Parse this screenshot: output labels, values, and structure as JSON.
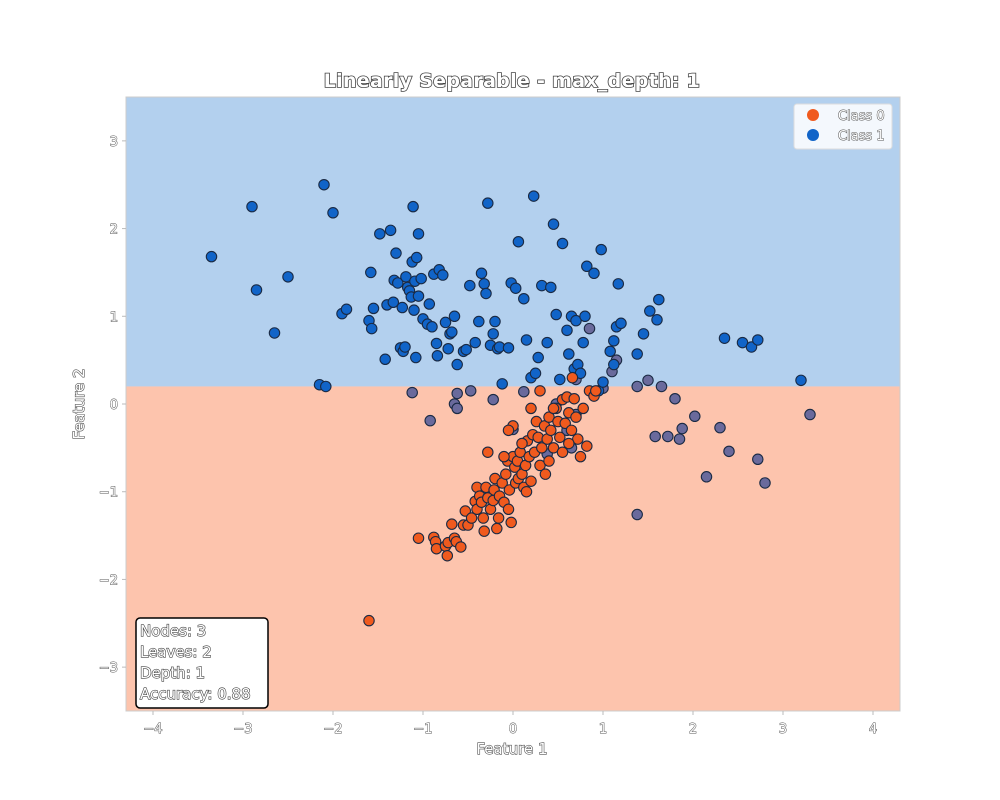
{
  "chart_data": {
    "type": "scatter",
    "title": "Linearly Separable - max_depth: 1",
    "xlabel": "Feature 1",
    "ylabel": "Feature 2",
    "xlim": [
      -4.3,
      4.3
    ],
    "ylim": [
      -3.5,
      3.5
    ],
    "xticks": [
      -4,
      -3,
      -2,
      -1,
      0,
      1,
      2,
      3,
      4
    ],
    "yticks": [
      -3,
      -2,
      -1,
      0,
      1,
      2,
      3
    ],
    "grid": false,
    "legend_position": "top-right",
    "decision_regions": {
      "threshold_feature": "Feature 2",
      "threshold": 0.2,
      "above_class": "Class 1",
      "below_class": "Class 0",
      "above_color": "#b3d0ee",
      "below_color": "#fdc4ad"
    },
    "series": [
      {
        "name": "Class 0",
        "color": "#f05a1e",
        "points": [
          [
            -1.6,
            -2.47
          ],
          [
            -1.05,
            -1.53
          ],
          [
            -0.88,
            -1.52
          ],
          [
            -0.86,
            -1.57
          ],
          [
            -0.85,
            -1.65
          ],
          [
            -0.75,
            -1.62
          ],
          [
            -0.73,
            -1.73
          ],
          [
            -0.72,
            -1.58
          ],
          [
            -0.68,
            -1.37
          ],
          [
            -0.65,
            -1.53
          ],
          [
            -0.63,
            -1.57
          ],
          [
            -0.58,
            -1.63
          ],
          [
            -0.55,
            -1.38
          ],
          [
            -0.53,
            -1.22
          ],
          [
            -0.5,
            -1.38
          ],
          [
            -0.46,
            -1.3
          ],
          [
            -0.42,
            -1.11
          ],
          [
            -0.4,
            -1.2
          ],
          [
            -0.4,
            -0.95
          ],
          [
            -0.37,
            -1.05
          ],
          [
            -0.35,
            -1.12
          ],
          [
            -0.33,
            -1.3
          ],
          [
            -0.32,
            -1.45
          ],
          [
            -0.3,
            -0.95
          ],
          [
            -0.28,
            -1.07
          ],
          [
            -0.25,
            -1.2
          ],
          [
            -0.22,
            -1.1
          ],
          [
            -0.21,
            -0.98
          ],
          [
            -0.2,
            -0.85
          ],
          [
            -0.18,
            -1.42
          ],
          [
            -0.16,
            -1.3
          ],
          [
            -0.15,
            -1.05
          ],
          [
            -0.12,
            -0.9
          ],
          [
            -0.1,
            -1.12
          ],
          [
            -0.08,
            -0.8
          ],
          [
            -0.06,
            -0.65
          ],
          [
            -0.05,
            -1.2
          ],
          [
            -0.04,
            -0.98
          ],
          [
            -0.02,
            -1.35
          ],
          [
            0.0,
            -0.6
          ],
          [
            0.02,
            -0.72
          ],
          [
            0.03,
            -0.9
          ],
          [
            0.05,
            -0.65
          ],
          [
            0.06,
            -0.85
          ],
          [
            0.08,
            -0.55
          ],
          [
            0.1,
            -0.8
          ],
          [
            0.12,
            -0.95
          ],
          [
            0.14,
            -0.7
          ],
          [
            0.16,
            -0.42
          ],
          [
            0.18,
            -0.6
          ],
          [
            0.2,
            -0.88
          ],
          [
            0.22,
            -0.35
          ],
          [
            0.24,
            -0.55
          ],
          [
            0.26,
            -0.2
          ],
          [
            0.28,
            -0.38
          ],
          [
            0.3,
            -0.7
          ],
          [
            0.32,
            -0.5
          ],
          [
            0.35,
            -0.25
          ],
          [
            0.38,
            -0.4
          ],
          [
            0.4,
            -0.15
          ],
          [
            0.42,
            -0.3
          ],
          [
            0.45,
            -0.5
          ],
          [
            0.48,
            -0.05
          ],
          [
            0.5,
            -0.2
          ],
          [
            0.52,
            -0.38
          ],
          [
            0.55,
            0.05
          ],
          [
            0.58,
            -0.22
          ],
          [
            0.6,
            0.08
          ],
          [
            0.62,
            -0.1
          ],
          [
            0.65,
            -0.3
          ],
          [
            0.68,
            0.06
          ],
          [
            0.7,
            -0.15
          ],
          [
            0.72,
            -0.4
          ],
          [
            0.75,
            -0.6
          ],
          [
            0.78,
            -0.05
          ],
          [
            0.82,
            -0.48
          ],
          [
            0.85,
            0.15
          ],
          [
            0.9,
            0.09
          ],
          [
            0.92,
            0.15
          ],
          [
            0.3,
            0.15
          ],
          [
            0.0,
            -0.25
          ],
          [
            0.4,
            -0.65
          ],
          [
            0.62,
            -0.45
          ],
          [
            -0.1,
            -0.6
          ],
          [
            0.15,
            -1.0
          ],
          [
            -0.05,
            -0.3
          ],
          [
            0.55,
            -0.55
          ],
          [
            0.66,
            0.3
          ],
          [
            0.45,
            -0.05
          ],
          [
            0.2,
            -0.05
          ],
          [
            0.1,
            -0.45
          ],
          [
            -0.28,
            -0.55
          ],
          [
            0.36,
            -0.8
          ]
        ]
      },
      {
        "name": "Class 1",
        "color": "#1164c8",
        "points": [
          [
            -3.35,
            1.68
          ],
          [
            -2.9,
            2.25
          ],
          [
            -2.85,
            1.3
          ],
          [
            -2.65,
            0.81
          ],
          [
            -2.5,
            1.45
          ],
          [
            -2.15,
            0.22
          ],
          [
            -2.1,
            2.5
          ],
          [
            -2.08,
            0.2
          ],
          [
            -2.0,
            2.18
          ],
          [
            -1.9,
            1.03
          ],
          [
            -1.85,
            1.08
          ],
          [
            -1.6,
            0.95
          ],
          [
            -1.58,
            1.5
          ],
          [
            -1.57,
            0.86
          ],
          [
            -1.55,
            1.09
          ],
          [
            -1.48,
            1.94
          ],
          [
            -1.42,
            0.51
          ],
          [
            -1.4,
            1.13
          ],
          [
            -1.36,
            1.98
          ],
          [
            -1.33,
            1.16
          ],
          [
            -1.32,
            1.41
          ],
          [
            -1.3,
            1.72
          ],
          [
            -1.28,
            1.38
          ],
          [
            -1.25,
            0.64
          ],
          [
            -1.23,
            1.1
          ],
          [
            -1.22,
            0.6
          ],
          [
            -1.2,
            0.65
          ],
          [
            -1.19,
            1.45
          ],
          [
            -1.17,
            1.33
          ],
          [
            -1.15,
            1.29
          ],
          [
            -1.13,
            1.22
          ],
          [
            -1.12,
            1.62
          ],
          [
            -1.11,
            2.25
          ],
          [
            -1.1,
            1.07
          ],
          [
            -1.09,
            1.4
          ],
          [
            -1.08,
            0.53
          ],
          [
            -1.07,
            1.67
          ],
          [
            -1.05,
            1.23
          ],
          [
            -1.05,
            1.94
          ],
          [
            -1.02,
            1.43
          ],
          [
            -1.0,
            0.97
          ],
          [
            -0.95,
            0.91
          ],
          [
            -0.93,
            1.14
          ],
          [
            -0.9,
            0.88
          ],
          [
            -0.88,
            1.48
          ],
          [
            -0.85,
            0.69
          ],
          [
            -0.84,
            0.55
          ],
          [
            -0.82,
            1.53
          ],
          [
            -0.78,
            1.47
          ],
          [
            -0.75,
            0.93
          ],
          [
            -0.72,
            0.63
          ],
          [
            -0.7,
            0.8
          ],
          [
            -0.68,
            0.82
          ],
          [
            -0.65,
            1.0
          ],
          [
            -0.62,
            0.45
          ],
          [
            -0.55,
            0.6
          ],
          [
            -0.52,
            0.62
          ],
          [
            -0.48,
            1.35
          ],
          [
            -0.42,
            0.7
          ],
          [
            -0.38,
            0.94
          ],
          [
            -0.35,
            1.49
          ],
          [
            -0.32,
            1.37
          ],
          [
            -0.3,
            1.26
          ],
          [
            -0.28,
            2.29
          ],
          [
            -0.25,
            0.67
          ],
          [
            -0.22,
            0.8
          ],
          [
            -0.2,
            0.94
          ],
          [
            -0.17,
            0.63
          ],
          [
            -0.15,
            0.65
          ],
          [
            -0.12,
            0.23
          ],
          [
            -0.05,
            0.64
          ],
          [
            -0.02,
            1.38
          ],
          [
            0.03,
            1.32
          ],
          [
            0.06,
            1.85
          ],
          [
            0.12,
            1.2
          ],
          [
            0.15,
            0.73
          ],
          [
            0.2,
            0.3
          ],
          [
            0.23,
            2.37
          ],
          [
            0.25,
            0.35
          ],
          [
            0.28,
            0.53
          ],
          [
            0.32,
            1.35
          ],
          [
            0.38,
            0.7
          ],
          [
            0.42,
            1.33
          ],
          [
            0.45,
            2.05
          ],
          [
            0.48,
            1.02
          ],
          [
            0.52,
            0.28
          ],
          [
            0.55,
            1.83
          ],
          [
            0.6,
            0.84
          ],
          [
            0.62,
            0.57
          ],
          [
            0.65,
            1.0
          ],
          [
            0.68,
            0.4
          ],
          [
            0.7,
            0.95
          ],
          [
            0.72,
            0.45
          ],
          [
            0.78,
            0.7
          ],
          [
            0.8,
            1.0
          ],
          [
            0.82,
            1.57
          ],
          [
            0.9,
            1.49
          ],
          [
            0.95,
            0.15
          ],
          [
            0.98,
            1.76
          ],
          [
            1.0,
            0.25
          ],
          [
            1.08,
            0.6
          ],
          [
            1.12,
            0.45
          ],
          [
            1.15,
            0.88
          ],
          [
            1.17,
            1.37
          ],
          [
            1.2,
            0.92
          ],
          [
            1.38,
            0.57
          ],
          [
            1.45,
            0.8
          ],
          [
            1.52,
            1.06
          ],
          [
            1.6,
            0.96
          ],
          [
            1.62,
            1.19
          ],
          [
            2.35,
            0.75
          ],
          [
            2.55,
            0.7
          ],
          [
            2.65,
            0.65
          ],
          [
            2.72,
            0.73
          ],
          [
            3.2,
            0.27
          ],
          [
            1.12,
            0.72
          ],
          [
            0.75,
            0.35
          ]
        ]
      },
      {
        "name": "Class 1",
        "color": "#6a6a9c",
        "points": [
          [
            -1.12,
            0.13
          ],
          [
            -0.92,
            -0.19
          ],
          [
            -0.62,
            0.12
          ],
          [
            -0.65,
            0.0
          ],
          [
            -0.62,
            -0.05
          ],
          [
            -0.47,
            0.15
          ],
          [
            -0.22,
            0.05
          ],
          [
            0.0,
            -0.29
          ],
          [
            0.12,
            0.14
          ],
          [
            0.38,
            -0.57
          ],
          [
            0.6,
            -0.3
          ],
          [
            0.65,
            -0.5
          ],
          [
            0.7,
            -0.12
          ],
          [
            1.0,
            0.18
          ],
          [
            1.38,
            0.2
          ],
          [
            1.5,
            0.27
          ],
          [
            1.58,
            -0.37
          ],
          [
            1.65,
            0.2
          ],
          [
            1.72,
            -0.37
          ],
          [
            1.8,
            0.06
          ],
          [
            1.85,
            -0.4
          ],
          [
            1.88,
            -0.28
          ],
          [
            2.02,
            -0.14
          ],
          [
            2.15,
            -0.83
          ],
          [
            2.3,
            -0.27
          ],
          [
            2.4,
            -0.54
          ],
          [
            2.72,
            -0.63
          ],
          [
            2.8,
            -0.9
          ],
          [
            3.3,
            -0.12
          ],
          [
            1.38,
            -1.26
          ],
          [
            0.85,
            0.86
          ],
          [
            1.15,
            0.5
          ],
          [
            1.1,
            0.37
          ],
          [
            0.7,
            0.28
          ],
          [
            0.48,
            0.0
          ]
        ]
      }
    ],
    "legend": [
      {
        "label": "Class 0",
        "color": "#f05a1e"
      },
      {
        "label": "Class 1",
        "color": "#1164c8"
      }
    ],
    "annotation": {
      "lines": [
        "Nodes: 3",
        "Leaves: 2",
        "Depth: 1",
        "Accuracy: 0.88"
      ],
      "position": "bottom-left"
    }
  }
}
